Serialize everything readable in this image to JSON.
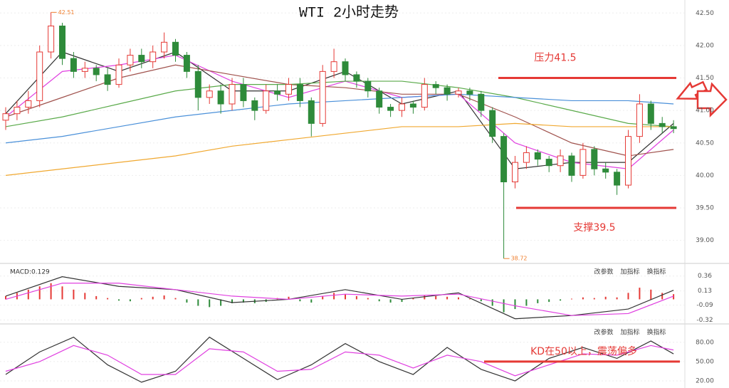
{
  "chart_data": [
    {
      "type": "candlestick",
      "title": "WTI 2小时走势",
      "open": [
        40.85,
        40.95,
        41.05,
        41.15,
        41.9,
        42.3,
        41.8,
        41.6,
        41.65,
        41.55,
        41.4,
        41.7,
        41.85,
        41.75,
        41.9,
        42.05,
        41.85,
        41.6,
        41.2,
        41.3,
        41.1,
        41.4,
        41.15,
        41.0,
        41.3,
        41.25,
        41.4,
        41.15,
        40.8,
        41.6,
        41.75,
        41.55,
        41.45,
        41.3,
        41.05,
        41.0,
        41.1,
        41.05,
        41.4,
        41.35,
        41.25,
        41.3,
        41.25,
        41.0,
        40.6,
        39.9,
        40.2,
        40.35,
        40.25,
        40.15,
        40.3,
        40.0,
        40.4,
        40.1,
        40.05,
        39.85,
        40.6,
        41.1,
        40.8,
        40.75
      ],
      "high": [
        41.05,
        41.15,
        41.3,
        42.0,
        42.51,
        42.35,
        41.9,
        41.75,
        41.7,
        41.65,
        41.8,
        41.95,
        41.95,
        42.0,
        42.2,
        42.1,
        41.9,
        41.7,
        41.4,
        41.4,
        41.5,
        41.5,
        41.2,
        41.4,
        41.4,
        41.5,
        41.5,
        41.2,
        41.7,
        41.95,
        41.8,
        41.6,
        41.5,
        41.35,
        41.1,
        41.2,
        41.15,
        41.5,
        41.45,
        41.4,
        41.35,
        41.35,
        41.3,
        41.05,
        40.65,
        40.3,
        40.45,
        40.4,
        40.3,
        40.4,
        40.35,
        40.5,
        40.45,
        40.2,
        40.1,
        40.7,
        41.25,
        41.15,
        40.9,
        40.85
      ],
      "low": [
        40.7,
        40.85,
        40.95,
        41.05,
        41.8,
        41.7,
        41.5,
        41.5,
        41.45,
        41.3,
        41.35,
        41.6,
        41.65,
        41.65,
        41.8,
        41.75,
        41.5,
        41.0,
        41.1,
        40.95,
        41.0,
        41.05,
        40.85,
        40.95,
        41.15,
        41.15,
        41.05,
        40.6,
        40.75,
        41.5,
        41.45,
        41.35,
        41.2,
        40.95,
        40.9,
        40.9,
        40.95,
        41.0,
        41.25,
        41.15,
        41.2,
        41.15,
        40.9,
        40.5,
        38.72,
        39.8,
        40.1,
        40.15,
        40.05,
        40.05,
        39.9,
        39.95,
        40.0,
        39.95,
        39.7,
        39.8,
        40.5,
        40.7,
        40.65,
        40.65
      ],
      "close": [
        40.95,
        41.05,
        41.15,
        41.9,
        42.3,
        41.8,
        41.6,
        41.65,
        41.55,
        41.4,
        41.7,
        41.85,
        41.75,
        41.9,
        42.05,
        41.85,
        41.6,
        41.2,
        41.3,
        41.1,
        41.4,
        41.15,
        41.0,
        41.3,
        41.25,
        41.4,
        41.15,
        40.8,
        41.6,
        41.75,
        41.55,
        41.45,
        41.3,
        41.05,
        41.0,
        41.1,
        41.05,
        41.4,
        41.35,
        41.25,
        41.3,
        41.25,
        41.0,
        40.6,
        39.9,
        40.2,
        40.35,
        40.25,
        40.15,
        40.3,
        40.0,
        40.4,
        40.1,
        40.05,
        39.85,
        40.6,
        41.1,
        40.8,
        40.75,
        40.72
      ],
      "up_color": "#e53935",
      "down_color": "#2e8b3a",
      "lines": [
        {
          "color": "#333333",
          "x": [
            0,
            5,
            10,
            15,
            20,
            25,
            30,
            35,
            40,
            45,
            50,
            55,
            59
          ],
          "values": [
            40.95,
            41.9,
            41.6,
            41.9,
            41.3,
            41.3,
            41.6,
            41.1,
            41.3,
            40.1,
            40.2,
            40.2,
            40.8
          ]
        },
        {
          "color": "#e040e0",
          "x": [
            0,
            5,
            10,
            15,
            20,
            25,
            30,
            35,
            40,
            45,
            50,
            55,
            59
          ],
          "values": [
            40.9,
            41.6,
            41.7,
            41.85,
            41.45,
            41.2,
            41.45,
            41.2,
            41.25,
            40.5,
            40.2,
            40.1,
            40.7
          ]
        },
        {
          "color": "#a0524d",
          "x": [
            0,
            5,
            10,
            15,
            20,
            25,
            30,
            35,
            40,
            45,
            50,
            55,
            59
          ],
          "values": [
            40.9,
            41.2,
            41.5,
            41.7,
            41.55,
            41.4,
            41.35,
            41.25,
            41.25,
            40.9,
            40.5,
            40.3,
            40.4
          ]
        },
        {
          "color": "#5aaa4a",
          "x": [
            0,
            5,
            10,
            15,
            20,
            25,
            30,
            35,
            40,
            45,
            50,
            55,
            59
          ],
          "values": [
            40.75,
            40.9,
            41.1,
            41.3,
            41.4,
            41.4,
            41.45,
            41.45,
            41.35,
            41.2,
            41.0,
            40.8,
            40.75
          ]
        },
        {
          "color": "#4a90d9",
          "x": [
            0,
            5,
            10,
            15,
            20,
            25,
            30,
            35,
            40,
            45,
            50,
            55,
            59
          ],
          "values": [
            40.5,
            40.6,
            40.75,
            40.9,
            41.0,
            41.1,
            41.15,
            41.2,
            41.25,
            41.2,
            41.15,
            41.15,
            41.1
          ]
        },
        {
          "color": "#f0a830",
          "x": [
            0,
            5,
            10,
            15,
            20,
            25,
            30,
            35,
            40,
            45,
            50,
            55,
            59
          ],
          "values": [
            40.0,
            40.1,
            40.2,
            40.3,
            40.45,
            40.55,
            40.65,
            40.75,
            40.75,
            40.8,
            40.75,
            40.75,
            40.75
          ]
        }
      ],
      "extremes": [
        42.51,
        38.72
      ],
      "levels": [
        {
          "value": 41.5,
          "label": "压力41.5",
          "color": "#e53935"
        },
        {
          "value": 39.5,
          "label": "支撑39.5",
          "color": "#e53935"
        }
      ],
      "ylim": [
        38.7,
        42.7
      ],
      "yticks": [
        {
          "value": 39,
          "label": "39.00"
        },
        {
          "value": 39.5,
          "label": "39.50"
        },
        {
          "value": 40,
          "label": "40.00"
        },
        {
          "value": 40.5,
          "label": "40.50"
        },
        {
          "value": 41,
          "label": "41.00"
        },
        {
          "value": 41.5,
          "label": "41.50"
        },
        {
          "value": 42,
          "label": "42.00"
        },
        {
          "value": 42.5,
          "label": "42.50"
        }
      ],
      "grid": true
    },
    {
      "type": "macd",
      "label": "MACD:0.129",
      "toolbar": [
        "改参数",
        "加指标",
        "换指标"
      ],
      "histogram": [
        0.05,
        0.1,
        0.15,
        0.2,
        0.25,
        0.2,
        0.15,
        0.1,
        0.05,
        0.02,
        -0.02,
        -0.03,
        0.02,
        0.04,
        0.06,
        0.02,
        -0.05,
        -0.1,
        -0.12,
        -0.1,
        -0.06,
        -0.05,
        -0.06,
        -0.04,
        0.02,
        0.04,
        -0.03,
        -0.05,
        0.05,
        0.1,
        0.08,
        0.05,
        0.02,
        -0.03,
        -0.05,
        -0.04,
        0.02,
        0.06,
        0.05,
        0.04,
        0.03,
        0.01,
        -0.03,
        -0.1,
        -0.2,
        -0.15,
        -0.1,
        -0.06,
        -0.04,
        -0.02,
        0.01,
        0.03,
        0.02,
        0.04,
        0.03,
        0.1,
        0.18,
        0.15,
        0.1,
        0.08
      ],
      "up_color": "#e53935",
      "down_color": "#2e8b3a",
      "lines": [
        {
          "color": "#333333",
          "x": [
            0,
            5,
            10,
            15,
            20,
            25,
            30,
            35,
            40,
            45,
            50,
            55,
            59
          ],
          "values": [
            0.05,
            0.35,
            0.2,
            0.15,
            -0.05,
            0.0,
            0.15,
            0.0,
            0.1,
            -0.3,
            -0.25,
            -0.15,
            0.14
          ]
        },
        {
          "color": "#e040e0",
          "x": [
            0,
            5,
            10,
            15,
            20,
            25,
            30,
            35,
            40,
            45,
            50,
            55,
            59
          ],
          "values": [
            0.0,
            0.25,
            0.25,
            0.15,
            0.05,
            0.0,
            0.08,
            0.05,
            0.08,
            -0.1,
            -0.25,
            -0.22,
            0.05
          ]
        }
      ],
      "ylim": [
        -0.38,
        0.5
      ],
      "yticks": [
        0.36,
        0.13,
        -0.09,
        -0.32
      ],
      "grid": true
    },
    {
      "type": "kd",
      "toolbar": [
        "改参数",
        "加指标",
        "换指标"
      ],
      "lines": [
        {
          "color": "#333333",
          "x": [
            0,
            3,
            6,
            9,
            12,
            15,
            18,
            21,
            24,
            27,
            30,
            33,
            36,
            39,
            42,
            45,
            48,
            51,
            54,
            57,
            59
          ],
          "values": [
            30,
            65,
            88,
            45,
            18,
            35,
            88,
            55,
            22,
            45,
            78,
            50,
            30,
            72,
            38,
            20,
            55,
            72,
            55,
            82,
            62
          ]
        },
        {
          "color": "#e040e0",
          "x": [
            0,
            3,
            6,
            9,
            12,
            15,
            18,
            21,
            24,
            27,
            30,
            33,
            36,
            39,
            42,
            45,
            48,
            51,
            54,
            57,
            59
          ],
          "values": [
            35,
            50,
            75,
            60,
            30,
            30,
            70,
            65,
            35,
            38,
            65,
            60,
            40,
            60,
            50,
            28,
            45,
            62,
            60,
            75,
            68
          ]
        }
      ],
      "levels": [
        {
          "value": 50,
          "label": "KD在50以上，震荡偏多",
          "color": "#e53935"
        }
      ],
      "ylim": [
        9,
        103
      ],
      "yticks": [
        {
          "value": 80,
          "label": "80.00"
        },
        {
          "value": 50,
          "label": "50.00"
        },
        {
          "value": 20,
          "label": "20.00"
        }
      ],
      "grid": true
    }
  ]
}
